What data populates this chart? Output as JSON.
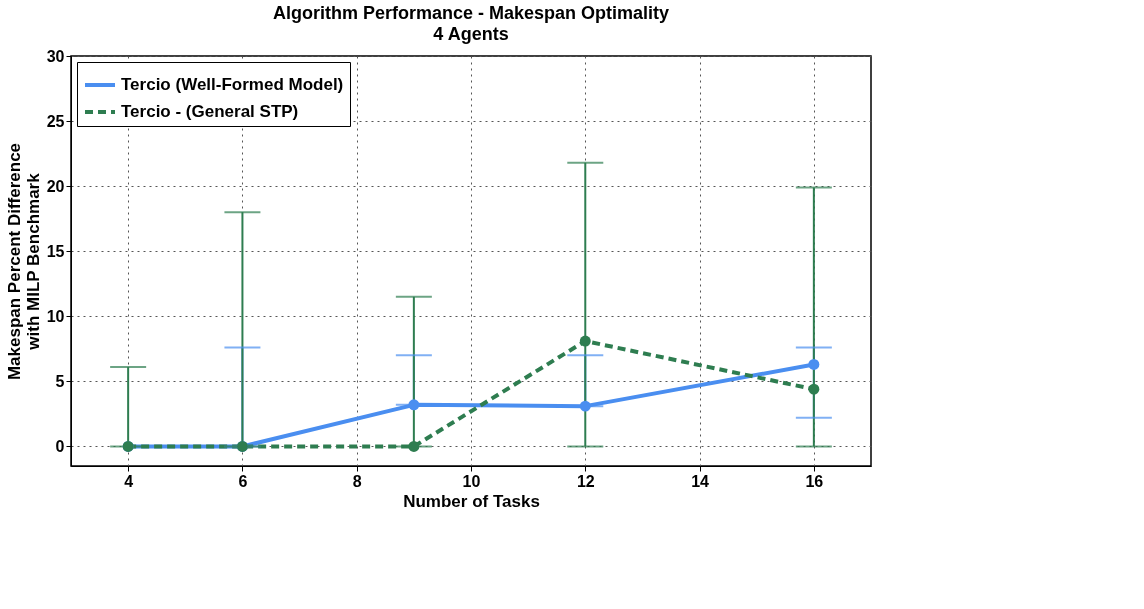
{
  "chart_data": {
    "type": "line",
    "title": "Algorithm Performance - Makespan Optimality",
    "subtitle": "4 Agents",
    "xlabel": "Number of Tasks",
    "ylabel": "Makespan Percent Difference\nwith MILP Benchmark",
    "x": [
      4,
      6,
      9,
      12,
      16
    ],
    "series": [
      {
        "name": "Tercio (Well-Formed Model)",
        "color": "#4a8ef0",
        "line_style": "solid",
        "values": [
          0,
          0,
          3.2,
          3.1,
          6.3
        ],
        "errors": [
          null,
          [
            0,
            7.6
          ],
          [
            3.2,
            7.0
          ],
          [
            3.1,
            7.0
          ],
          [
            2.2,
            7.6
          ]
        ]
      },
      {
        "name": "Tercio - (General STP)",
        "color": "#2e7d50",
        "line_style": "dashed",
        "values": [
          0,
          0,
          0,
          8.1,
          4.4
        ],
        "errors": [
          [
            0,
            6.1
          ],
          [
            0,
            18.0
          ],
          [
            0,
            11.5
          ],
          [
            0,
            21.8
          ],
          [
            0,
            19.9
          ]
        ]
      }
    ],
    "xlim": [
      3,
      17
    ],
    "xticks": [
      4,
      6,
      8,
      10,
      12,
      14,
      16
    ],
    "ylim": [
      -1.5,
      30
    ],
    "yticks": [
      0,
      5,
      10,
      15,
      20,
      25,
      30
    ],
    "grid": true,
    "legend": "top left",
    "marker": "circle"
  }
}
